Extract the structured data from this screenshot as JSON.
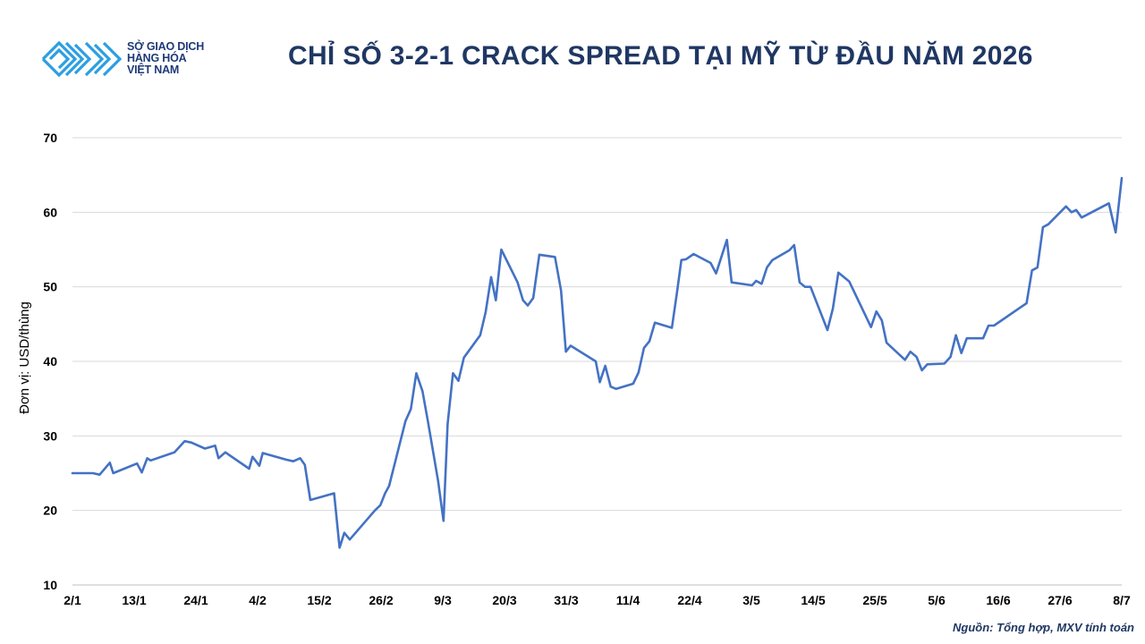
{
  "logo": {
    "line1": "SỞ GIAO DỊCH",
    "line2": "HÀNG HÓA",
    "line3": "VIỆT NAM",
    "color": "#2b9fe0"
  },
  "source": "Nguồn: Tổng hợp, MXV tính toán",
  "chart_data": {
    "type": "line",
    "title": "CHỈ SỐ 3-2-1 CRACK SPREAD TẠI MỸ TỪ ĐẦU NĂM 2026",
    "xlabel": "",
    "ylabel": "Đơn vị: USD/thùng",
    "ylim": [
      10,
      70
    ],
    "yticks": [
      10,
      20,
      30,
      40,
      50,
      60,
      70
    ],
    "grid": true,
    "line_color": "#4472c4",
    "categories": [
      "2/1",
      "13/1",
      "24/1",
      "4/2",
      "15/2",
      "26/2",
      "9/3",
      "20/3",
      "31/3",
      "11/4",
      "22/4",
      "3/5",
      "14/5",
      "25/5",
      "5/6",
      "16/6",
      "27/6",
      "8/7"
    ],
    "series": [
      {
        "values": [
          [
            0,
            25.0
          ],
          [
            3.0,
            25.0
          ],
          [
            4.0,
            24.8
          ],
          [
            5.5,
            26.4
          ],
          [
            6.0,
            25.0
          ],
          [
            9.5,
            26.3
          ],
          [
            10.2,
            25.1
          ],
          [
            11.0,
            27.0
          ],
          [
            11.5,
            26.7
          ],
          [
            15.0,
            27.8
          ],
          [
            16.5,
            29.3
          ],
          [
            17.5,
            29.1
          ],
          [
            19.5,
            28.3
          ],
          [
            21.0,
            28.7
          ],
          [
            21.5,
            27.0
          ],
          [
            22.5,
            27.8
          ],
          [
            26.0,
            25.6
          ],
          [
            26.5,
            27.2
          ],
          [
            27.5,
            26.0
          ],
          [
            28.0,
            27.7
          ],
          [
            31.5,
            26.8
          ],
          [
            32.5,
            26.6
          ],
          [
            33.5,
            27.0
          ],
          [
            34.2,
            26.1
          ],
          [
            35.0,
            21.4
          ],
          [
            38.5,
            22.3
          ],
          [
            39.3,
            15.0
          ],
          [
            40.0,
            17.0
          ],
          [
            40.8,
            16.1
          ],
          [
            44.5,
            20.0
          ],
          [
            45.3,
            20.7
          ],
          [
            46.0,
            22.3
          ],
          [
            46.6,
            23.3
          ],
          [
            49.0,
            32.0
          ],
          [
            49.8,
            33.6
          ],
          [
            50.6,
            38.4
          ],
          [
            51.5,
            36.0
          ],
          [
            52.3,
            32.0
          ],
          [
            53.8,
            24.0
          ],
          [
            54.6,
            18.6
          ],
          [
            55.2,
            31.6
          ],
          [
            56.0,
            38.4
          ],
          [
            56.8,
            37.4
          ],
          [
            57.6,
            40.5
          ],
          [
            60.0,
            43.5
          ],
          [
            60.8,
            46.6
          ],
          [
            61.6,
            51.3
          ],
          [
            62.3,
            48.2
          ],
          [
            63.1,
            55.0
          ],
          [
            65.5,
            50.6
          ],
          [
            66.3,
            48.2
          ],
          [
            67.0,
            47.5
          ],
          [
            67.8,
            48.5
          ],
          [
            68.7,
            54.3
          ],
          [
            71.0,
            54.0
          ],
          [
            71.9,
            49.5
          ],
          [
            72.6,
            41.3
          ],
          [
            73.3,
            42.1
          ],
          [
            77.0,
            40.0
          ],
          [
            77.6,
            37.2
          ],
          [
            78.4,
            39.4
          ],
          [
            79.2,
            36.6
          ],
          [
            80.0,
            36.3
          ],
          [
            82.5,
            37.0
          ],
          [
            83.3,
            38.5
          ],
          [
            84.1,
            41.8
          ],
          [
            84.9,
            42.7
          ],
          [
            85.7,
            45.2
          ],
          [
            88.2,
            44.5
          ],
          [
            89.0,
            49.5
          ],
          [
            89.6,
            53.6
          ],
          [
            90.3,
            53.7
          ],
          [
            91.4,
            54.4
          ],
          [
            93.9,
            53.2
          ],
          [
            94.7,
            51.8
          ],
          [
            96.3,
            56.3
          ],
          [
            97.0,
            50.6
          ],
          [
            100.0,
            50.2
          ],
          [
            100.6,
            50.8
          ],
          [
            101.4,
            50.4
          ],
          [
            102.2,
            52.6
          ],
          [
            103.0,
            53.6
          ],
          [
            105.5,
            54.9
          ],
          [
            106.2,
            55.6
          ],
          [
            107.0,
            50.6
          ],
          [
            107.8,
            50.0
          ],
          [
            108.6,
            50.0
          ],
          [
            111.1,
            44.2
          ],
          [
            111.9,
            47.1
          ],
          [
            112.7,
            51.9
          ],
          [
            114.3,
            50.7
          ],
          [
            117.5,
            44.6
          ],
          [
            118.3,
            46.7
          ],
          [
            119.1,
            45.5
          ],
          [
            119.8,
            42.5
          ],
          [
            122.5,
            40.2
          ],
          [
            123.3,
            41.3
          ],
          [
            124.2,
            40.6
          ],
          [
            125.0,
            38.8
          ],
          [
            125.8,
            39.6
          ],
          [
            128.3,
            39.7
          ],
          [
            129.2,
            40.6
          ],
          [
            130.0,
            43.5
          ],
          [
            130.8,
            41.1
          ],
          [
            131.6,
            43.1
          ],
          [
            134.0,
            43.1
          ],
          [
            134.8,
            44.8
          ],
          [
            135.6,
            44.8
          ],
          [
            140.4,
            47.8
          ],
          [
            141.2,
            52.2
          ],
          [
            142.0,
            52.6
          ],
          [
            142.8,
            58.0
          ],
          [
            143.6,
            58.4
          ],
          [
            146.2,
            60.8
          ],
          [
            147.0,
            60.0
          ],
          [
            147.7,
            60.3
          ],
          [
            148.5,
            59.3
          ],
          [
            152.5,
            61.2
          ],
          [
            153.5,
            57.3
          ],
          [
            154.4,
            64.6
          ]
        ]
      }
    ]
  }
}
